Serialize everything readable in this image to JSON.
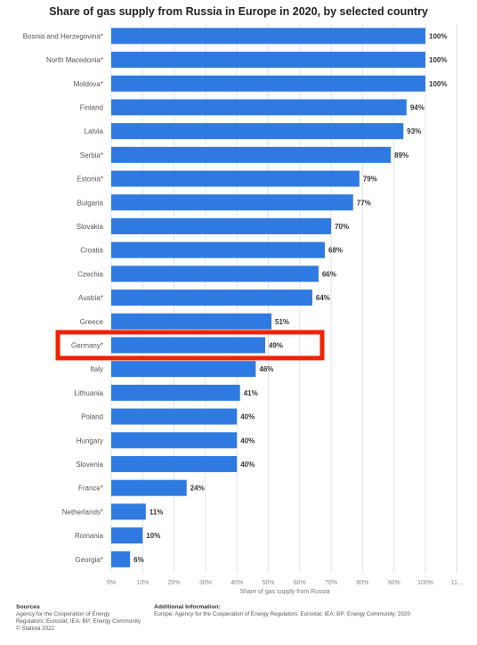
{
  "chart_data": {
    "type": "bar",
    "orientation": "horizontal",
    "title": "Share of gas supply from Russia in Europe in 2020, by selected country",
    "xlabel": "Share of gas supply from Russia",
    "ylabel": "",
    "xlim": [
      0,
      110
    ],
    "ticks": [
      "0%",
      "10%",
      "20%",
      "30%",
      "40%",
      "50%",
      "60%",
      "70%",
      "80%",
      "90%",
      "100%",
      "11..."
    ],
    "grid": true,
    "bar_color": "#2f7ae0",
    "highlight_color": "#ee2200",
    "highlight_category": "Germany*",
    "categories": [
      "Bosnia and Herzegovina*",
      "North Macedonia*",
      "Moldova*",
      "Finland",
      "Latvia",
      "Serbia*",
      "Estonia*",
      "Bulgaria",
      "Slovakia",
      "Croatia",
      "Czechia",
      "Austria*",
      "Greece",
      "Germany*",
      "Italy",
      "Lithuania",
      "Poland",
      "Hungary",
      "Slovenia",
      "France*",
      "Netherlands*",
      "Romania",
      "Georgia*"
    ],
    "values": [
      100,
      100,
      100,
      94,
      93,
      89,
      79,
      77,
      70,
      68,
      66,
      64,
      51,
      49,
      46,
      41,
      40,
      40,
      40,
      24,
      11,
      10,
      6
    ],
    "value_labels": [
      "100%",
      "100%",
      "100%",
      "94%",
      "93%",
      "89%",
      "79%",
      "77%",
      "70%",
      "68%",
      "66%",
      "64%",
      "51%",
      "49%",
      "46%",
      "41%",
      "40%",
      "40%",
      "40%",
      "24%",
      "11%",
      "10%",
      "6%"
    ]
  },
  "footer": {
    "sources_heading": "Sources",
    "sources_lines": [
      "Agency for the Cooperation of Energy",
      "Regulators; Eurostat; IEA; BP; Energy Community",
      "© Statista 2022"
    ],
    "additional_heading": "Additional Information:",
    "additional_text": "Europe; Agency for the Cooperation of Energy Regulators; Eurostat; IEA; BP; Energy Community; 2020"
  }
}
